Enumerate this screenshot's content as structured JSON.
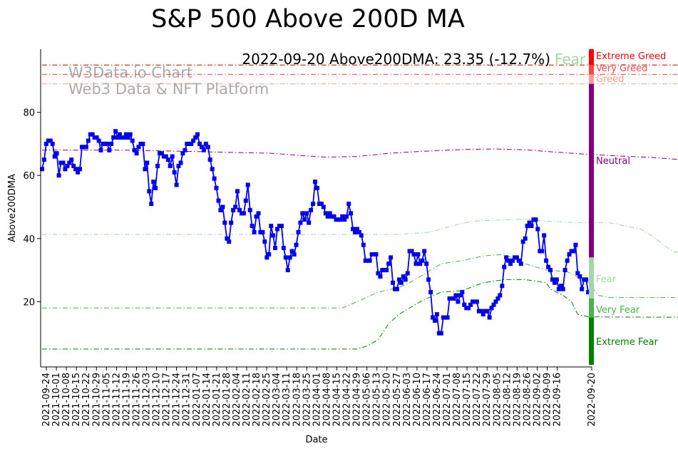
{
  "chart_data": {
    "type": "line",
    "title": "S&P 500 Above 200D MA",
    "xlabel": "Date",
    "ylabel": "Above200DMA",
    "ylim": [
      0,
      100
    ],
    "yticks": [
      20,
      40,
      60,
      80
    ],
    "annotation": "2022-09-20 Above200DMA: 23.35 (-12.7%)",
    "annotation_level": "Fear",
    "watermark": [
      "W3Data.io Chart",
      "Web3 Data & NFT Platform"
    ],
    "x_tick_labels": [
      "2021-09-24",
      "2021-10-01",
      "2021-10-08",
      "2021-10-15",
      "2021-10-22",
      "2021-10-29",
      "2021-11-05",
      "2021-11-12",
      "2021-11-19",
      "2021-11-26",
      "2021-12-03",
      "2021-12-10",
      "2021-12-17",
      "2021-12-24",
      "2021-12-31",
      "2022-01-07",
      "2022-01-14",
      "2022-01-21",
      "2022-01-28",
      "2022-02-04",
      "2022-02-11",
      "2022-02-18",
      "2022-02-25",
      "2022-03-04",
      "2022-03-11",
      "2022-03-18",
      "2022-03-25",
      "2022-04-01",
      "2022-04-08",
      "2022-04-15",
      "2022-04-22",
      "2022-04-29",
      "2022-05-06",
      "2022-05-13",
      "2022-05-20",
      "2022-05-27",
      "2022-06-03",
      "2022-06-10",
      "2022-06-17",
      "2022-06-24",
      "2022-07-01",
      "2022-07-08",
      "2022-07-15",
      "2022-07-22",
      "2022-07-29",
      "2022-08-05",
      "2022-08-12",
      "2022-08-19",
      "2022-08-26",
      "2022-09-02",
      "2022-09-09",
      "2022-09-16",
      "2022-09-20"
    ],
    "zones": [
      {
        "name": "Extreme Greed",
        "color": "#ff0000",
        "from": 95,
        "to": 100
      },
      {
        "name": "Very Greed",
        "color": "#ff4444",
        "from": 92,
        "to": 95
      },
      {
        "name": "Greed",
        "color": "#ff9999",
        "from": 89,
        "to": 92
      },
      {
        "name": "Neutral",
        "color": "#800080",
        "from": 34,
        "to": 89
      },
      {
        "name": "Fear",
        "color": "#a5d6a7",
        "from": 21,
        "to": 34
      },
      {
        "name": "Very Fear",
        "color": "#4caf50",
        "from": 15,
        "to": 21
      },
      {
        "name": "Extreme Fear",
        "color": "#008000",
        "from": 0,
        "to": 15
      }
    ],
    "series": [
      {
        "name": "Above200DMA",
        "color": "#0000ee",
        "values": [
          62,
          65,
          70,
          71,
          71,
          70,
          66,
          67,
          60,
          64,
          64,
          62,
          63,
          64,
          65,
          63,
          62,
          61,
          62,
          69,
          69,
          69,
          71,
          73,
          73,
          72,
          72,
          71,
          68,
          70,
          70,
          70,
          68,
          70,
          72,
          74,
          72,
          73,
          72,
          72,
          73,
          72,
          73,
          71,
          68,
          67,
          69,
          70,
          70,
          62,
          64,
          55,
          51,
          58,
          56,
          63,
          67,
          67,
          66,
          66,
          65,
          63,
          66,
          61,
          57,
          63,
          64,
          67,
          68,
          70,
          70,
          70,
          71,
          72,
          73,
          70,
          69,
          68,
          70,
          69,
          65,
          62,
          59,
          56,
          52,
          49,
          50,
          45,
          40,
          39,
          45,
          49,
          50,
          55,
          49,
          48,
          48,
          52,
          57,
          49,
          44,
          42,
          47,
          48,
          42,
          42,
          39,
          34,
          35,
          44,
          41,
          37,
          43,
          44,
          44,
          37,
          34,
          30,
          34,
          36,
          35,
          38,
          42,
          45,
          48,
          46,
          48,
          45,
          49,
          51,
          58,
          56,
          51,
          51,
          50,
          48,
          47,
          48,
          47,
          47,
          46,
          46,
          46,
          47,
          46,
          47,
          51,
          48,
          43,
          42,
          43,
          42,
          41,
          38,
          33,
          33,
          33,
          35,
          35,
          35,
          29,
          28,
          30,
          30,
          30,
          32,
          34,
          26,
          24,
          24,
          27,
          26,
          28,
          27,
          29,
          36,
          36,
          35,
          32,
          35,
          32,
          33,
          36,
          32,
          27,
          23,
          15,
          14,
          16,
          10,
          10,
          15,
          15,
          15,
          21,
          21,
          21,
          22,
          20,
          22,
          23,
          19,
          18,
          18,
          19,
          20,
          20,
          20,
          17,
          17,
          16,
          17,
          17,
          15,
          18,
          19,
          20,
          21,
          22,
          25,
          31,
          34,
          33,
          32,
          33,
          34,
          34,
          33,
          32,
          39,
          40,
          44,
          45,
          44,
          46,
          46,
          43,
          36,
          36,
          41,
          33,
          31,
          30,
          27,
          26,
          27,
          24,
          25,
          24,
          30,
          33,
          35,
          36,
          36,
          38,
          29,
          28,
          24,
          27,
          27,
          23,
          23
        ]
      },
      {
        "name": "Neutral reference",
        "style": "dashdot",
        "color": "#800080",
        "points": [
          [
            0,
            68
          ],
          [
            40,
            68
          ],
          [
            70,
            67.6
          ],
          [
            110,
            67
          ],
          [
            125,
            66.2
          ],
          [
            135,
            65.8
          ],
          [
            150,
            66
          ],
          [
            165,
            67
          ],
          [
            180,
            67.6
          ],
          [
            200,
            68.2
          ],
          [
            215,
            68.4
          ],
          [
            230,
            68.1
          ],
          [
            250,
            67.1
          ],
          [
            270,
            66.3
          ],
          [
            290,
            65.7
          ],
          [
            310,
            64.7
          ]
        ]
      },
      {
        "name": "Fear reference",
        "style": "dashdot",
        "color": "#a5d6a7",
        "points": [
          [
            0,
            41.3
          ],
          [
            60,
            41.3
          ],
          [
            100,
            41.3
          ],
          [
            140,
            41.3
          ],
          [
            170,
            41.3
          ],
          [
            185,
            42
          ],
          [
            195,
            44
          ],
          [
            205,
            45.5
          ],
          [
            230,
            46.2
          ],
          [
            240,
            45.5
          ],
          [
            255,
            45
          ],
          [
            270,
            45
          ],
          [
            285,
            43
          ],
          [
            290,
            41
          ],
          [
            295,
            38.5
          ],
          [
            300,
            36
          ],
          [
            310,
            34.6
          ]
        ]
      },
      {
        "name": "Very Fear reference",
        "style": "dashdot",
        "color": "#4caf50",
        "points": [
          [
            0,
            18
          ],
          [
            100,
            18
          ],
          [
            143,
            18
          ],
          [
            150,
            20
          ],
          [
            160,
            23
          ],
          [
            170,
            24.5
          ],
          [
            175,
            26
          ],
          [
            180,
            28
          ],
          [
            190,
            32
          ],
          [
            200,
            33
          ],
          [
            210,
            34.5
          ],
          [
            220,
            35
          ],
          [
            230,
            32
          ],
          [
            240,
            30
          ],
          [
            250,
            29.5
          ],
          [
            260,
            26
          ],
          [
            265,
            22
          ],
          [
            270,
            21.3
          ],
          [
            285,
            21.3
          ],
          [
            310,
            21.3
          ]
        ]
      },
      {
        "name": "Extreme Fear reference",
        "style": "dashdot",
        "color": "#008000",
        "points": [
          [
            0,
            5
          ],
          [
            100,
            5
          ],
          [
            150,
            5
          ],
          [
            155,
            6
          ],
          [
            160,
            8
          ],
          [
            165,
            13
          ],
          [
            170,
            16
          ],
          [
            180,
            20
          ],
          [
            190,
            23
          ],
          [
            200,
            23.5
          ],
          [
            210,
            26
          ],
          [
            220,
            27
          ],
          [
            230,
            27
          ],
          [
            240,
            26
          ],
          [
            242,
            24
          ],
          [
            248,
            22
          ],
          [
            252,
            20
          ],
          [
            255,
            16
          ],
          [
            260,
            15.2
          ],
          [
            285,
            15.1
          ],
          [
            310,
            15.1
          ]
        ]
      },
      {
        "name": "Extreme Greed line",
        "style": "dashdot",
        "color": "#cc0000",
        "points": [
          [
            0,
            95
          ],
          [
            310,
            95
          ]
        ]
      },
      {
        "name": "Very Greed line",
        "style": "dashdot",
        "color": "#ff4444",
        "points": [
          [
            0,
            92
          ],
          [
            310,
            92
          ]
        ]
      },
      {
        "name": "Greed line",
        "style": "dashdot",
        "color": "#ff9999",
        "points": [
          [
            0,
            89
          ],
          [
            310,
            89
          ]
        ]
      }
    ]
  }
}
